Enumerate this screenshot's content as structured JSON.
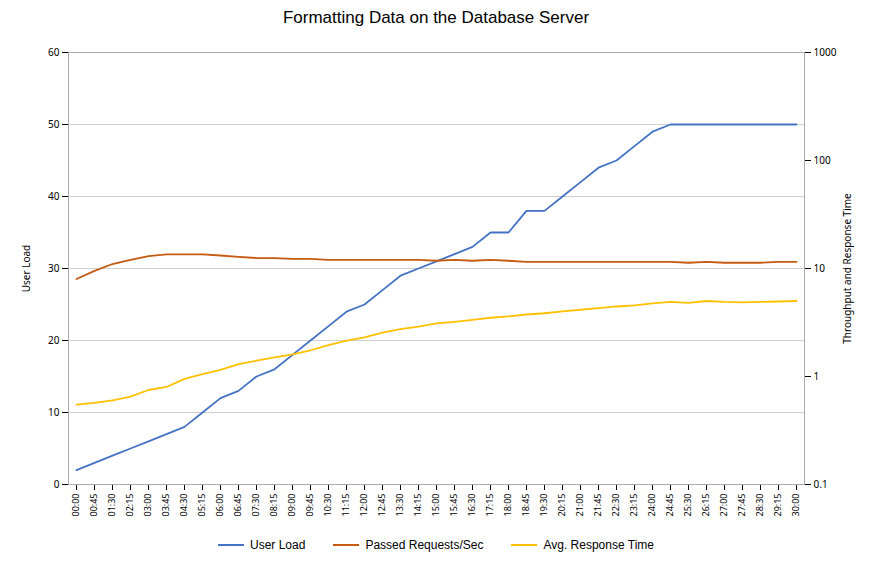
{
  "chart_data": {
    "type": "line",
    "title": "Formatting Data on the Database Server",
    "ylabel": "User Load",
    "y2label": "Throughput and Response Time",
    "ylim": [
      0,
      60
    ],
    "yticks": [
      0,
      10,
      20,
      30,
      40,
      50,
      60
    ],
    "y2lim": [
      0.1,
      1000
    ],
    "y2ticks": [
      0.1,
      1,
      10,
      100,
      1000
    ],
    "log": "y2",
    "grid": true,
    "legend": "bottom",
    "categories": [
      "00:00",
      "00:45",
      "01:30",
      "02:15",
      "03:00",
      "03:45",
      "04:30",
      "05:15",
      "06:00",
      "06:45",
      "07:30",
      "08:15",
      "09:00",
      "09:45",
      "10:30",
      "11:15",
      "12:00",
      "12:45",
      "13:30",
      "14:15",
      "15:00",
      "15:45",
      "16:30",
      "17:15",
      "18:00",
      "18:45",
      "19:30",
      "20:15",
      "21:00",
      "21:45",
      "22:30",
      "23:15",
      "24:00",
      "24:45",
      "25:30",
      "26:15",
      "27:00",
      "27:45",
      "28:30",
      "29:15",
      "30:00"
    ],
    "series": [
      {
        "name": "User Load",
        "color": "#4472c4",
        "values": [
          2,
          3,
          4,
          5,
          6,
          7,
          8,
          10,
          12,
          13,
          15,
          16,
          18,
          20,
          22,
          24,
          25,
          27,
          29,
          30,
          31,
          32,
          33,
          35,
          35,
          38,
          38,
          40,
          42,
          44,
          45,
          47,
          49,
          50,
          50,
          50,
          50,
          50,
          50,
          50,
          50
        ]
      },
      {
        "name": "Passed Requests/Sec",
        "color": "#c55a11",
        "axis": "y2",
        "values": [
          8.0,
          9.5,
          11.0,
          12.0,
          13.0,
          13.5,
          13.5,
          13.5,
          13.2,
          12.8,
          12.5,
          12.5,
          12.3,
          12.3,
          12.0,
          12.0,
          12.0,
          12.0,
          12.0,
          12.0,
          11.8,
          12.0,
          11.8,
          12.0,
          11.8,
          11.5,
          11.5,
          11.5,
          11.5,
          11.5,
          11.5,
          11.5,
          11.5,
          11.5,
          11.3,
          11.5,
          11.3,
          11.3,
          11.3,
          11.5,
          11.5
        ]
      },
      {
        "name": "Avg. Response Time",
        "color": "#ffc000",
        "axis": "y2",
        "values": [
          0.55,
          0.57,
          0.6,
          0.65,
          0.75,
          0.8,
          0.95,
          1.05,
          1.15,
          1.3,
          1.4,
          1.5,
          1.6,
          1.75,
          1.95,
          2.15,
          2.3,
          2.55,
          2.75,
          2.9,
          3.1,
          3.2,
          3.35,
          3.5,
          3.6,
          3.75,
          3.85,
          4.0,
          4.15,
          4.3,
          4.45,
          4.55,
          4.75,
          4.9,
          4.8,
          5.0,
          4.9,
          4.85,
          4.9,
          4.95,
          5.0
        ]
      }
    ]
  }
}
